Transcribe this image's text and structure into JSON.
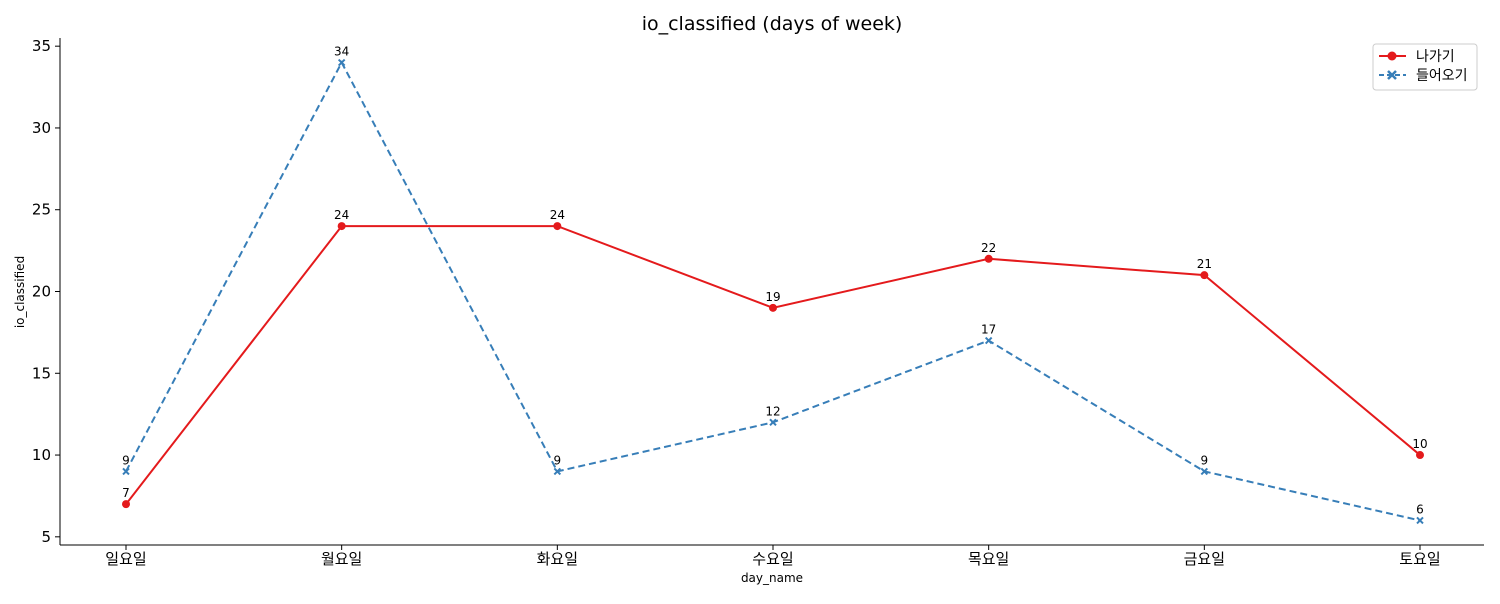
{
  "chart_data": {
    "type": "line",
    "title": "io_classified (days of week)",
    "xlabel": "day_name",
    "ylabel": "io_classified",
    "categories": [
      "일요일",
      "월요일",
      "화요일",
      "수요일",
      "목요일",
      "금요일",
      "토요일"
    ],
    "yticks": [
      5,
      10,
      15,
      20,
      25,
      30,
      35
    ],
    "ylim": [
      4.5,
      35.5
    ],
    "grid": false,
    "legend_position": "top-right",
    "series": [
      {
        "name": "나가기",
        "values": [
          7,
          24,
          24,
          19,
          22,
          21,
          10
        ],
        "color": "#e41a1c",
        "line_style": "solid",
        "marker": "circle"
      },
      {
        "name": "들어오기",
        "values": [
          9,
          34,
          9,
          12,
          17,
          9,
          6
        ],
        "color": "#377eb8",
        "line_style": "dashed",
        "marker": "x"
      }
    ]
  }
}
